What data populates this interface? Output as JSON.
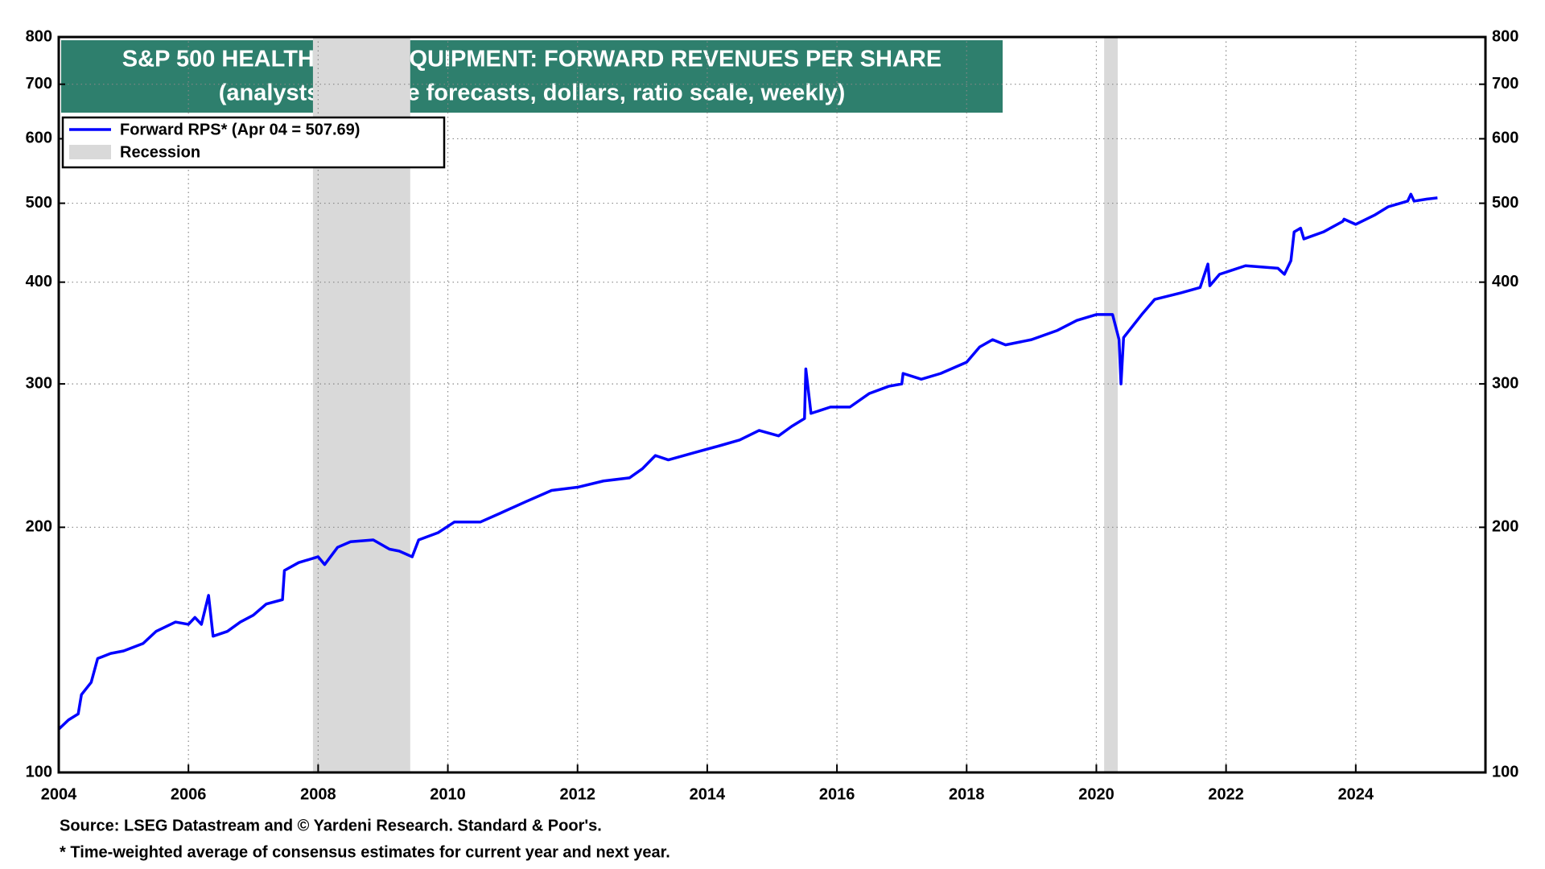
{
  "chart_data": {
    "type": "line",
    "title": "S&P 500 HEALTH CARE EQUIPMENT: FORWARD REVENUES PER SHARE",
    "subtitle": "(analysts’ average forecasts, dollars, ratio scale, weekly)",
    "source": "Source: LSEG Datastream and © Yardeni Research. Standard & Poor's.",
    "footnote": "* Time-weighted average of consensus estimates for current year and next year.",
    "log_scale": true,
    "grid": true,
    "legend_position": "upper-left",
    "xlim": [
      2004,
      2026
    ],
    "xticks": [
      2004,
      2006,
      2008,
      2010,
      2012,
      2014,
      2016,
      2018,
      2020,
      2022,
      2024
    ],
    "ylim": [
      100,
      800
    ],
    "yticks": [
      100,
      200,
      300,
      400,
      500,
      600,
      700,
      800
    ],
    "recession": {
      "name": "Recession",
      "color": "#d9d9d9",
      "periods": [
        [
          2007.92,
          2009.42
        ],
        [
          2020.12,
          2020.33
        ]
      ]
    },
    "x": [
      2004.0,
      2004.15,
      2004.3,
      2004.35,
      2004.5,
      2004.6,
      2004.8,
      2005.0,
      2005.3,
      2005.5,
      2005.8,
      2006.0,
      2006.1,
      2006.2,
      2006.31,
      2006.38,
      2006.6,
      2006.8,
      2007.0,
      2007.2,
      2007.45,
      2007.48,
      2007.7,
      2008.0,
      2008.1,
      2008.3,
      2008.5,
      2008.85,
      2009.1,
      2009.25,
      2009.45,
      2009.55,
      2009.85,
      2010.1,
      2010.5,
      2010.8,
      2011.2,
      2011.6,
      2012.0,
      2012.4,
      2012.8,
      2013.0,
      2013.2,
      2013.4,
      2013.8,
      2014.2,
      2014.5,
      2014.8,
      2015.1,
      2015.3,
      2015.5,
      2015.52,
      2015.6,
      2015.9,
      2016.2,
      2016.5,
      2016.8,
      2017.0,
      2017.02,
      2017.3,
      2017.6,
      2018.0,
      2018.2,
      2018.4,
      2018.6,
      2019.0,
      2019.4,
      2019.7,
      2020.0,
      2020.25,
      2020.35,
      2020.38,
      2020.42,
      2020.7,
      2020.9,
      2021.3,
      2021.6,
      2021.72,
      2021.75,
      2021.9,
      2022.3,
      2022.8,
      2022.9,
      2023.0,
      2023.05,
      2023.15,
      2023.2,
      2023.5,
      2023.8,
      2023.82,
      2024.0,
      2024.3,
      2024.5,
      2024.8,
      2024.85,
      2024.9,
      2025.1,
      2025.26
    ],
    "series": [
      {
        "name": "Forward RPS* (Apr 04 = 507.69)",
        "color": "#0000ff",
        "values": [
          113,
          116,
          118,
          124.6,
          129,
          138,
          140,
          141,
          144,
          149,
          153,
          152,
          155,
          152,
          165,
          147,
          149,
          153,
          156,
          161,
          163,
          177,
          181,
          184,
          180,
          189,
          192,
          193,
          188,
          187,
          184,
          193,
          197,
          203,
          203,
          208,
          215,
          222,
          224,
          228,
          230,
          236,
          245,
          242,
          247,
          252,
          256,
          263,
          259,
          266,
          272,
          313,
          276,
          281,
          281,
          292,
          298,
          300,
          309,
          304,
          309,
          319,
          333,
          340,
          335,
          340,
          349,
          359,
          365,
          365,
          340,
          300,
          342,
          365,
          381,
          388,
          394,
          421,
          396,
          409,
          419,
          416,
          409,
          425,
          461,
          466,
          452,
          461,
          475,
          478,
          471,
          484,
          495,
          503,
          513,
          503,
          506,
          507.69
        ]
      }
    ]
  }
}
